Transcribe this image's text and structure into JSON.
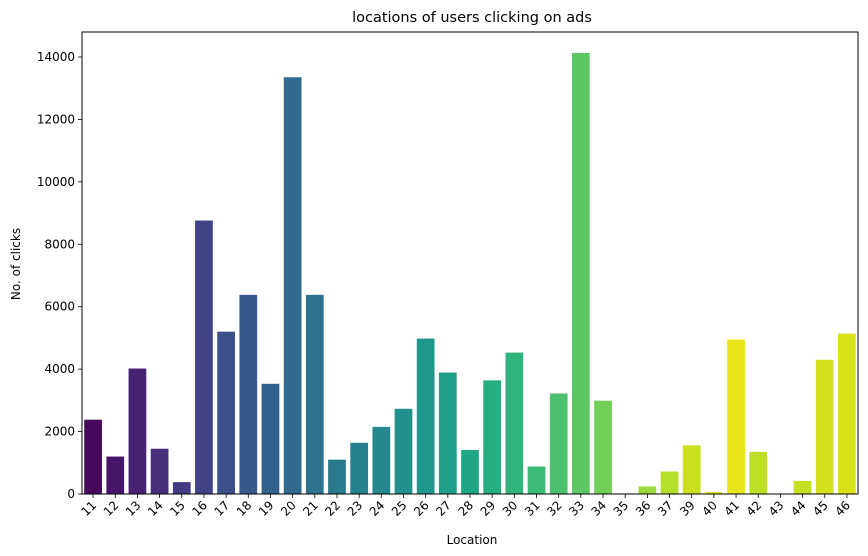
{
  "chart_data": {
    "type": "bar",
    "title": "locations of users clicking on ads",
    "xlabel": "Location",
    "ylabel": "No. of clicks",
    "ylim": [
      0,
      14800
    ],
    "yticks": [
      0,
      2000,
      4000,
      6000,
      8000,
      10000,
      12000,
      14000
    ],
    "grid": false,
    "colormap": "viridis",
    "categories": [
      "11",
      "12",
      "13",
      "14",
      "15",
      "16",
      "17",
      "18",
      "19",
      "20",
      "21",
      "22",
      "23",
      "24",
      "25",
      "26",
      "27",
      "28",
      "29",
      "30",
      "31",
      "32",
      "33",
      "34",
      "35",
      "36",
      "37",
      "39",
      "40",
      "41",
      "42",
      "43",
      "44",
      "45",
      "46"
    ],
    "values": [
      2380,
      1200,
      4020,
      1450,
      380,
      8760,
      5200,
      6380,
      3530,
      13350,
      6380,
      1100,
      1640,
      2150,
      2730,
      4980,
      3890,
      1410,
      3640,
      4530,
      880,
      3220,
      14130,
      2990,
      20,
      240,
      720,
      1560,
      60,
      4950,
      1350,
      10,
      420,
      4300,
      5140
    ],
    "colors": [
      "#46085c",
      "#461469",
      "#482374",
      "#462e7b",
      "#433b81",
      "#404387",
      "#3b508a",
      "#37598c",
      "#33638d",
      "#306a8e",
      "#2d728e",
      "#2a7a8e",
      "#27818e",
      "#25888e",
      "#22908d",
      "#1f988b",
      "#1f9f88",
      "#21a685",
      "#26ad81",
      "#30b47b",
      "#3bbb75",
      "#4bc16d",
      "#5dc863",
      "#70cf57",
      "#86d449",
      "#9dd93b",
      "#b4de2c",
      "#cae01e",
      "#dde318",
      "#e8e419",
      "#bddf26",
      "#b0dd2f",
      "#c4e021",
      "#d1e11c",
      "#d7e219"
    ]
  }
}
